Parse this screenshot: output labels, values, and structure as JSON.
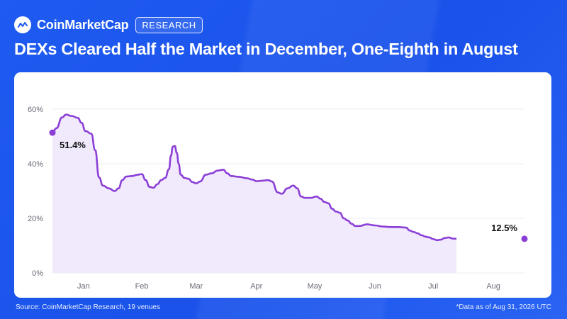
{
  "brand": {
    "name": "CoinMarketCap",
    "badge": "RESEARCH",
    "logo_icon": "coinmarketcap-logo-icon"
  },
  "headline": "DEXs Cleared Half the Market in December, One-Eighth in August",
  "footer": {
    "source": "Source: CoinMarketCap Research, 19 venues",
    "note": "*Data as of Aug 31, 2026 UTC"
  },
  "colors": {
    "background": "#1f5bf0",
    "line": "#8b3fd6",
    "fill": "#f1eafc",
    "grid": "#ececf2",
    "axis_text": "#6b6b78"
  },
  "chart_data": {
    "type": "area",
    "title": "DEXs Cleared Half the Market in December, One-Eighth in August",
    "ylabel": "",
    "xlabel": "",
    "ylim": [
      0,
      60
    ],
    "yticks": [
      0,
      20,
      40,
      60
    ],
    "ytick_labels": [
      "0%",
      "20%",
      "40%",
      "60%"
    ],
    "xlim": [
      0,
      243
    ],
    "xticks": [
      {
        "label": "Jan",
        "x": 16
      },
      {
        "label": "Feb",
        "x": 46
      },
      {
        "label": "Mar",
        "x": 74
      },
      {
        "label": "Apr",
        "x": 105
      },
      {
        "label": "May",
        "x": 135
      },
      {
        "label": "Jun",
        "x": 166
      },
      {
        "label": "Jul",
        "x": 196
      },
      {
        "label": "Aug",
        "x": 227
      }
    ],
    "grid": true,
    "annotations": [
      {
        "label": "51.4%",
        "x": 0,
        "y": 51.4
      },
      {
        "label": "12.5%",
        "x": 243,
        "y": 12.5
      }
    ],
    "series": [
      {
        "values": [
          [
            0,
            51.4
          ],
          [
            2,
            53
          ],
          [
            5,
            57
          ],
          [
            7,
            58
          ],
          [
            10,
            57.5
          ],
          [
            13,
            56.8
          ],
          [
            15,
            55
          ],
          [
            17,
            52
          ],
          [
            20,
            51
          ],
          [
            22,
            45
          ],
          [
            24,
            35
          ],
          [
            26,
            32
          ],
          [
            29,
            31
          ],
          [
            32,
            30
          ],
          [
            34,
            31
          ],
          [
            36,
            34
          ],
          [
            38,
            35.3
          ],
          [
            41,
            35.5
          ],
          [
            44,
            36
          ],
          [
            46,
            36.2
          ],
          [
            48,
            34
          ],
          [
            50,
            31.5
          ],
          [
            52,
            31.2
          ],
          [
            54,
            32.5
          ],
          [
            56,
            34
          ],
          [
            58,
            34.8
          ],
          [
            60,
            38
          ],
          [
            61,
            43
          ],
          [
            62,
            46.3
          ],
          [
            63,
            46.5
          ],
          [
            64,
            44
          ],
          [
            65,
            40
          ],
          [
            66,
            36
          ],
          [
            68,
            34.8
          ],
          [
            70,
            34.5
          ],
          [
            72,
            33.3
          ],
          [
            74,
            32.8
          ],
          [
            76,
            33.5
          ],
          [
            79,
            36
          ],
          [
            82,
            36.5
          ],
          [
            85,
            37.5
          ],
          [
            88,
            37.8
          ],
          [
            90,
            36.5
          ],
          [
            92,
            35.5
          ],
          [
            96,
            35.2
          ],
          [
            100,
            34.7
          ],
          [
            103,
            34.2
          ],
          [
            105,
            33.6
          ],
          [
            108,
            33.8
          ],
          [
            111,
            34
          ],
          [
            113,
            33.5
          ],
          [
            116,
            29.5
          ],
          [
            118,
            29
          ],
          [
            121,
            31
          ],
          [
            124,
            32
          ],
          [
            126,
            31
          ],
          [
            128,
            28
          ],
          [
            130,
            27.5
          ],
          [
            133,
            27.5
          ],
          [
            136,
            28
          ],
          [
            138,
            27.2
          ],
          [
            140,
            26
          ],
          [
            142,
            25.5
          ],
          [
            144,
            23.5
          ],
          [
            146,
            22.5
          ],
          [
            148,
            22
          ],
          [
            150,
            20
          ],
          [
            152,
            19.2
          ],
          [
            154,
            18
          ],
          [
            156,
            17.2
          ],
          [
            158,
            17.2
          ],
          [
            162,
            17.8
          ],
          [
            166,
            17.4
          ],
          [
            170,
            17
          ],
          [
            174,
            16.8
          ],
          [
            178,
            16.8
          ],
          [
            182,
            16.6
          ],
          [
            184,
            15.5
          ],
          [
            186,
            15
          ],
          [
            188,
            14.5
          ],
          [
            190,
            13.8
          ],
          [
            192,
            13.3
          ],
          [
            194,
            13
          ],
          [
            196,
            12.4
          ],
          [
            198,
            12
          ],
          [
            200,
            12.2
          ],
          [
            202,
            12.8
          ],
          [
            204,
            13
          ],
          [
            206,
            12.6
          ],
          [
            208,
            12.5
          ]
        ]
      }
    ]
  }
}
